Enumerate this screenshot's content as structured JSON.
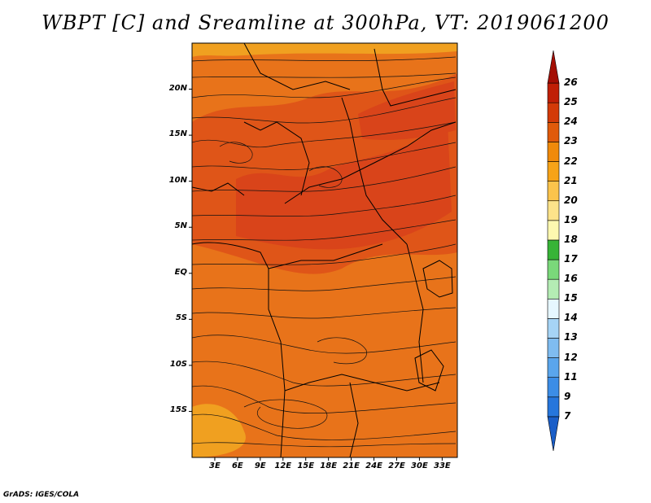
{
  "title": "WBPT [C] and Sreamline at 300hPa, VT: 2019061200",
  "credit": "GrADS: IGES/COLA",
  "lat_labels": [
    "20N",
    "15N",
    "10N",
    "5N",
    "EQ",
    "5S",
    "10S",
    "15S"
  ],
  "lat_values": [
    20,
    15,
    10,
    5,
    0,
    -5,
    -10,
    -15
  ],
  "lon_labels": [
    "3E",
    "6E",
    "9E",
    "12E",
    "15E",
    "18E",
    "21E",
    "24E",
    "27E",
    "30E",
    "33E"
  ],
  "lon_values": [
    3,
    6,
    9,
    12,
    15,
    18,
    21,
    24,
    27,
    30,
    33
  ],
  "extent": {
    "lon_min": 0,
    "lon_max": 35,
    "lat_min": -20,
    "lat_max": 25
  },
  "colorbar": {
    "labels": [
      "7",
      "9",
      "11",
      "12",
      "13",
      "14",
      "15",
      "16",
      "17",
      "18",
      "19",
      "20",
      "21",
      "22",
      "23",
      "24",
      "25",
      "26"
    ],
    "colors": [
      "#1a5ec8",
      "#2676dc",
      "#3c8de6",
      "#5aa5ec",
      "#7fbcf0",
      "#a6d4f6",
      "#e6f7ff",
      "#b4ecb4",
      "#7ad87a",
      "#37b437",
      "#fdf8b0",
      "#fde38a",
      "#fbc44c",
      "#f7a318",
      "#f08a0a",
      "#e05a0a",
      "#d33a08",
      "#c01f06",
      "#a40e04"
    ]
  },
  "field_colors": {
    "low": "#f0a020",
    "mid": "#e8731a",
    "high": "#df5518",
    "peak": "#d9441a"
  },
  "streamline_color": "#111111",
  "border_color": "#000000"
}
